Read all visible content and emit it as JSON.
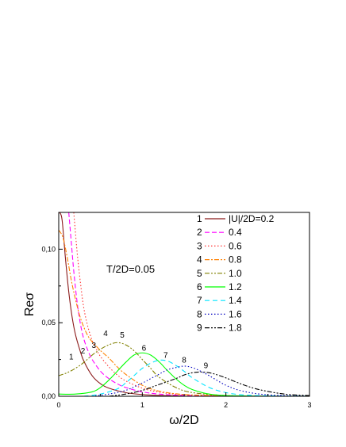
{
  "chart_data": {
    "type": "line",
    "title": "",
    "xlabel": "ω/2D",
    "ylabel": "Reσ",
    "xlim": [
      0,
      3
    ],
    "ylim": [
      0,
      0.125
    ],
    "xticks": [
      "0",
      "1",
      "2",
      "3"
    ],
    "yticks": [
      "0,00",
      "0,05",
      "0,10"
    ],
    "annotation": "T/2D=0.05",
    "legend_position": "top-right",
    "legend_header_prefix": "|U|/2D=",
    "grid": false,
    "series": [
      {
        "name": "1",
        "legend": "|U|/2D=0.2",
        "param": "0.2",
        "color": "#8b1a1a",
        "dash": "",
        "curve_label": "1",
        "x": [
          0.01,
          0.04,
          0.08,
          0.12,
          0.16,
          0.2,
          0.25,
          0.3,
          0.4,
          0.5,
          0.6,
          0.8,
          1.0,
          1.2,
          1.5
        ],
        "y": [
          0.125,
          0.12,
          0.094,
          0.071,
          0.054,
          0.042,
          0.032,
          0.024,
          0.014,
          0.0085,
          0.0055,
          0.0025,
          0.0012,
          0.0006,
          0.0002
        ]
      },
      {
        "name": "2",
        "legend": "0.4",
        "param": "0.4",
        "color": "#ff00ff",
        "dash": "6,3",
        "curve_label": "2",
        "x": [
          0.12,
          0.15,
          0.18,
          0.22,
          0.26,
          0.3,
          0.35,
          0.4,
          0.5,
          0.6,
          0.7,
          0.8,
          1.0,
          1.2,
          1.5,
          2.0
        ],
        "y": [
          0.125,
          0.105,
          0.085,
          0.064,
          0.049,
          0.039,
          0.031,
          0.025,
          0.017,
          0.012,
          0.0085,
          0.006,
          0.003,
          0.0015,
          0.0006,
          0.0002
        ]
      },
      {
        "name": "3",
        "legend": "0.6",
        "param": "0.6",
        "color": "#ff3333",
        "dash": "1.5,2.5",
        "curve_label": "3",
        "x": [
          0.18,
          0.22,
          0.26,
          0.3,
          0.35,
          0.4,
          0.45,
          0.5,
          0.6,
          0.7,
          0.8,
          1.0,
          1.2,
          1.5,
          2.0
        ],
        "y": [
          0.125,
          0.098,
          0.077,
          0.06,
          0.047,
          0.038,
          0.032,
          0.027,
          0.02,
          0.0145,
          0.0105,
          0.0055,
          0.0028,
          0.001,
          0.0003
        ]
      },
      {
        "name": "4",
        "legend": "0.8",
        "param": "0.8",
        "color": "#ff8000",
        "dash": "6,2,2,2",
        "curve_label": "4",
        "x": [
          0.0,
          0.05,
          0.1,
          0.15,
          0.2,
          0.25,
          0.3,
          0.35,
          0.4,
          0.45,
          0.5,
          0.6,
          0.7,
          0.8,
          1.0,
          1.2,
          1.5,
          2.0
        ],
        "y": [
          0.113,
          0.108,
          0.095,
          0.079,
          0.066,
          0.055,
          0.047,
          0.041,
          0.037,
          0.034,
          0.031,
          0.026,
          0.02,
          0.015,
          0.0075,
          0.0035,
          0.0012,
          0.0003
        ]
      },
      {
        "name": "5",
        "legend": "1.0",
        "param": "1.0",
        "color": "#808000",
        "dash": "6,2,2,2,2,2",
        "curve_label": "5",
        "x": [
          0.0,
          0.1,
          0.2,
          0.3,
          0.4,
          0.5,
          0.6,
          0.7,
          0.8,
          0.9,
          1.0,
          1.1,
          1.2,
          1.4,
          1.6,
          2.0,
          2.5
        ],
        "y": [
          0.014,
          0.016,
          0.019,
          0.023,
          0.028,
          0.032,
          0.035,
          0.0365,
          0.035,
          0.031,
          0.025,
          0.019,
          0.013,
          0.006,
          0.0025,
          0.0005,
          0.0001
        ]
      },
      {
        "name": "6",
        "legend": "1.2",
        "param": "1.2",
        "color": "#00ff00",
        "dash": "",
        "curve_label": "6",
        "x": [
          0.0,
          0.2,
          0.4,
          0.5,
          0.6,
          0.7,
          0.8,
          0.9,
          1.0,
          1.1,
          1.2,
          1.3,
          1.4,
          1.5,
          1.6,
          1.8,
          2.0,
          2.4,
          3.0
        ],
        "y": [
          0.0015,
          0.0015,
          0.003,
          0.006,
          0.011,
          0.017,
          0.023,
          0.028,
          0.0295,
          0.028,
          0.0235,
          0.0175,
          0.012,
          0.0075,
          0.0045,
          0.0015,
          0.0005,
          0.0001,
          0.0
        ]
      },
      {
        "name": "7",
        "legend": "1.4",
        "param": "1.4",
        "color": "#00e5ff",
        "dash": "6,4",
        "curve_label": "7",
        "x": [
          0.3,
          0.5,
          0.7,
          0.8,
          0.9,
          1.0,
          1.1,
          1.2,
          1.3,
          1.4,
          1.5,
          1.6,
          1.8,
          2.0,
          2.2,
          2.5,
          3.0
        ],
        "y": [
          0.0,
          0.0015,
          0.005,
          0.009,
          0.014,
          0.019,
          0.0225,
          0.0245,
          0.024,
          0.021,
          0.017,
          0.0125,
          0.006,
          0.0025,
          0.001,
          0.0003,
          0.0
        ]
      },
      {
        "name": "8",
        "legend": "1.6",
        "param": "1.6",
        "color": "#0000c0",
        "dash": "1.5,2.5",
        "curve_label": "8",
        "x": [
          0.4,
          0.6,
          0.8,
          1.0,
          1.1,
          1.2,
          1.3,
          1.4,
          1.5,
          1.6,
          1.7,
          1.8,
          2.0,
          2.2,
          2.5,
          3.0
        ],
        "y": [
          0.0,
          0.0015,
          0.004,
          0.009,
          0.012,
          0.015,
          0.018,
          0.0195,
          0.0205,
          0.0195,
          0.017,
          0.014,
          0.0075,
          0.0035,
          0.001,
          0.0001
        ]
      },
      {
        "name": "9",
        "legend": "1.8",
        "param": "1.8",
        "color": "#000000",
        "dash": "6,2,2,2,2,2",
        "curve_label": "9",
        "x": [
          0.6,
          0.8,
          1.0,
          1.2,
          1.4,
          1.5,
          1.6,
          1.7,
          1.8,
          1.9,
          2.0,
          2.2,
          2.4,
          2.7,
          3.0
        ],
        "y": [
          0.0,
          0.0015,
          0.004,
          0.008,
          0.012,
          0.0145,
          0.016,
          0.0165,
          0.016,
          0.0145,
          0.0125,
          0.008,
          0.0045,
          0.0015,
          0.0005
        ]
      }
    ]
  }
}
